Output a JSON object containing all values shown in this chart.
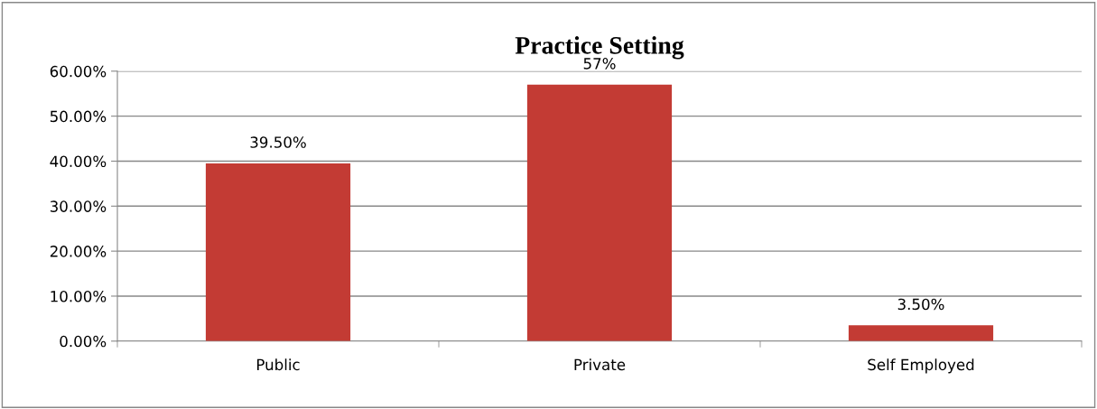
{
  "chart_data": {
    "type": "bar",
    "title": "Practice Setting",
    "categories": [
      "Public",
      "Private",
      "Self Employed"
    ],
    "values": [
      39.5,
      57,
      3.5
    ],
    "value_labels": [
      "39.50%",
      "57%",
      "3.50%"
    ],
    "color": "#c33b34",
    "ylim": [
      0,
      60
    ],
    "yticks": [
      {
        "value": 0,
        "label": "0.00%"
      },
      {
        "value": 10,
        "label": "10.00%"
      },
      {
        "value": 20,
        "label": "20.00%"
      },
      {
        "value": 30,
        "label": "30.00%"
      },
      {
        "value": 40,
        "label": "40.00%"
      },
      {
        "value": 50,
        "label": "50.00%"
      },
      {
        "value": 60,
        "label": "60.00%"
      }
    ],
    "grid": "y",
    "legend": false
  }
}
